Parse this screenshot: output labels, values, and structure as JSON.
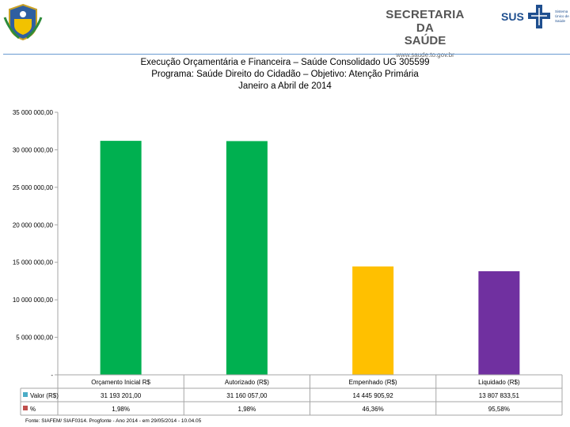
{
  "header": {
    "secretaria_line1": "SECRETARIA DA",
    "secretaria_line2": "SAÚDE",
    "secretaria_url": "www.saude.to.gov.br",
    "sus_text": "SUS",
    "sus_small": "Sistema Único de Saúde"
  },
  "chart_data": {
    "type": "bar",
    "title_lines": [
      "Execução Orçamentária e Financeira –  Saúde Consolidado UG 305599",
      "Programa: Saúde Direito do Cidadão – Objetivo: Atenção Primária",
      "Janeiro a Abril de 2014"
    ],
    "categories": [
      "Orçamento Inicial R$",
      "Autorizado (R$)",
      "Empenhado (R$)",
      "Liquidado (R$)"
    ],
    "values": [
      31193201.0,
      31160057.0,
      14445905.92,
      13807833.51
    ],
    "colors": [
      "#00b050",
      "#00b050",
      "#ffc000",
      "#7030a0"
    ],
    "ylim": [
      0,
      35000000
    ],
    "y_ticks": [
      0,
      5000000,
      10000000,
      15000000,
      20000000,
      25000000,
      30000000,
      35000000
    ],
    "y_tick_labels": [
      "-",
      "5 000 000,00",
      "10 000 000,00",
      "15 000 000,00",
      "20 000 000,00",
      "25 000 000,00",
      "30 000 000,00",
      "35 000 000,00"
    ],
    "table": {
      "rows": [
        {
          "label": "Valor (R$)",
          "swatch": "#4bacc6",
          "cells": [
            "31 193 201,00",
            "31 160 057,00",
            "14 445 905,92",
            "13 807 833,51"
          ]
        },
        {
          "label": "%",
          "swatch": "#c0504d",
          "cells": [
            "1,98%",
            "1,98%",
            "46,36%",
            "95,58%"
          ]
        }
      ]
    }
  },
  "footer": {
    "source": "Fonte: SIAFEM/ SIAF0314. Progfonte - Ano 2014 - em 29/05/2014 - 10.04.05"
  }
}
